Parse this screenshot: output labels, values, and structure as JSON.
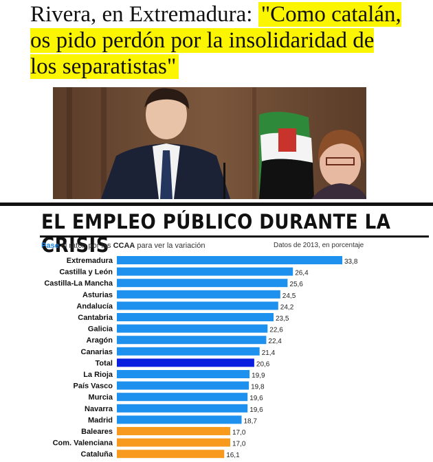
{
  "headline": {
    "part1": "Rivera, en Extremadura: ",
    "part2": "\"Como catalán, os pido perdón por la insolidaridad de los separatistas\""
  },
  "chart_title": "EL EMPLEO PÚBLICO DURANTE LA CRISIS",
  "hint": {
    "word1": "Pase",
    "middle": " el ratón por las ",
    "bold": "CCAA",
    "rest": " para ver la variación"
  },
  "datos": "Datos de 2013, en porcentaje",
  "colors": {
    "bar": "#1e90ee",
    "total": "#0a1ee0",
    "low": "#f79a1e",
    "highlight": "#fbf500"
  },
  "chart_data": {
    "type": "bar",
    "orientation": "horizontal",
    "title": "EL EMPLEO PÚBLICO DURANTE LA CRISIS",
    "categories": [
      "Extremadura",
      "Castilla y León",
      "Castilla-La Mancha",
      "Asturias",
      "Andalucía",
      "Cantabria",
      "Galicia",
      "Aragón",
      "Canarias",
      "Total",
      "La Rioja",
      "País Vasco",
      "Murcia",
      "Navarra",
      "Madrid",
      "Baleares",
      "Com. Valenciana",
      "Cataluña"
    ],
    "values": [
      33.8,
      26.4,
      25.6,
      24.5,
      24.2,
      23.5,
      22.6,
      22.4,
      21.4,
      20.6,
      19.9,
      19.8,
      19.6,
      19.6,
      18.7,
      17.0,
      17.0,
      16.1
    ],
    "value_labels": [
      "33,8",
      "26,4",
      "25,6",
      "24,5",
      "24,2",
      "23,5",
      "22,6",
      "22,4",
      "21,4",
      "20,6",
      "19,9",
      "19,8",
      "19,6",
      "19,6",
      "18,7",
      "17,0",
      "17,0",
      "16,1"
    ],
    "bar_groups": [
      "blue",
      "blue",
      "blue",
      "blue",
      "blue",
      "blue",
      "blue",
      "blue",
      "blue",
      "total",
      "blue",
      "blue",
      "blue",
      "blue",
      "blue",
      "orange",
      "orange",
      "orange"
    ],
    "xlim": [
      0,
      33.8
    ],
    "grid": false
  }
}
